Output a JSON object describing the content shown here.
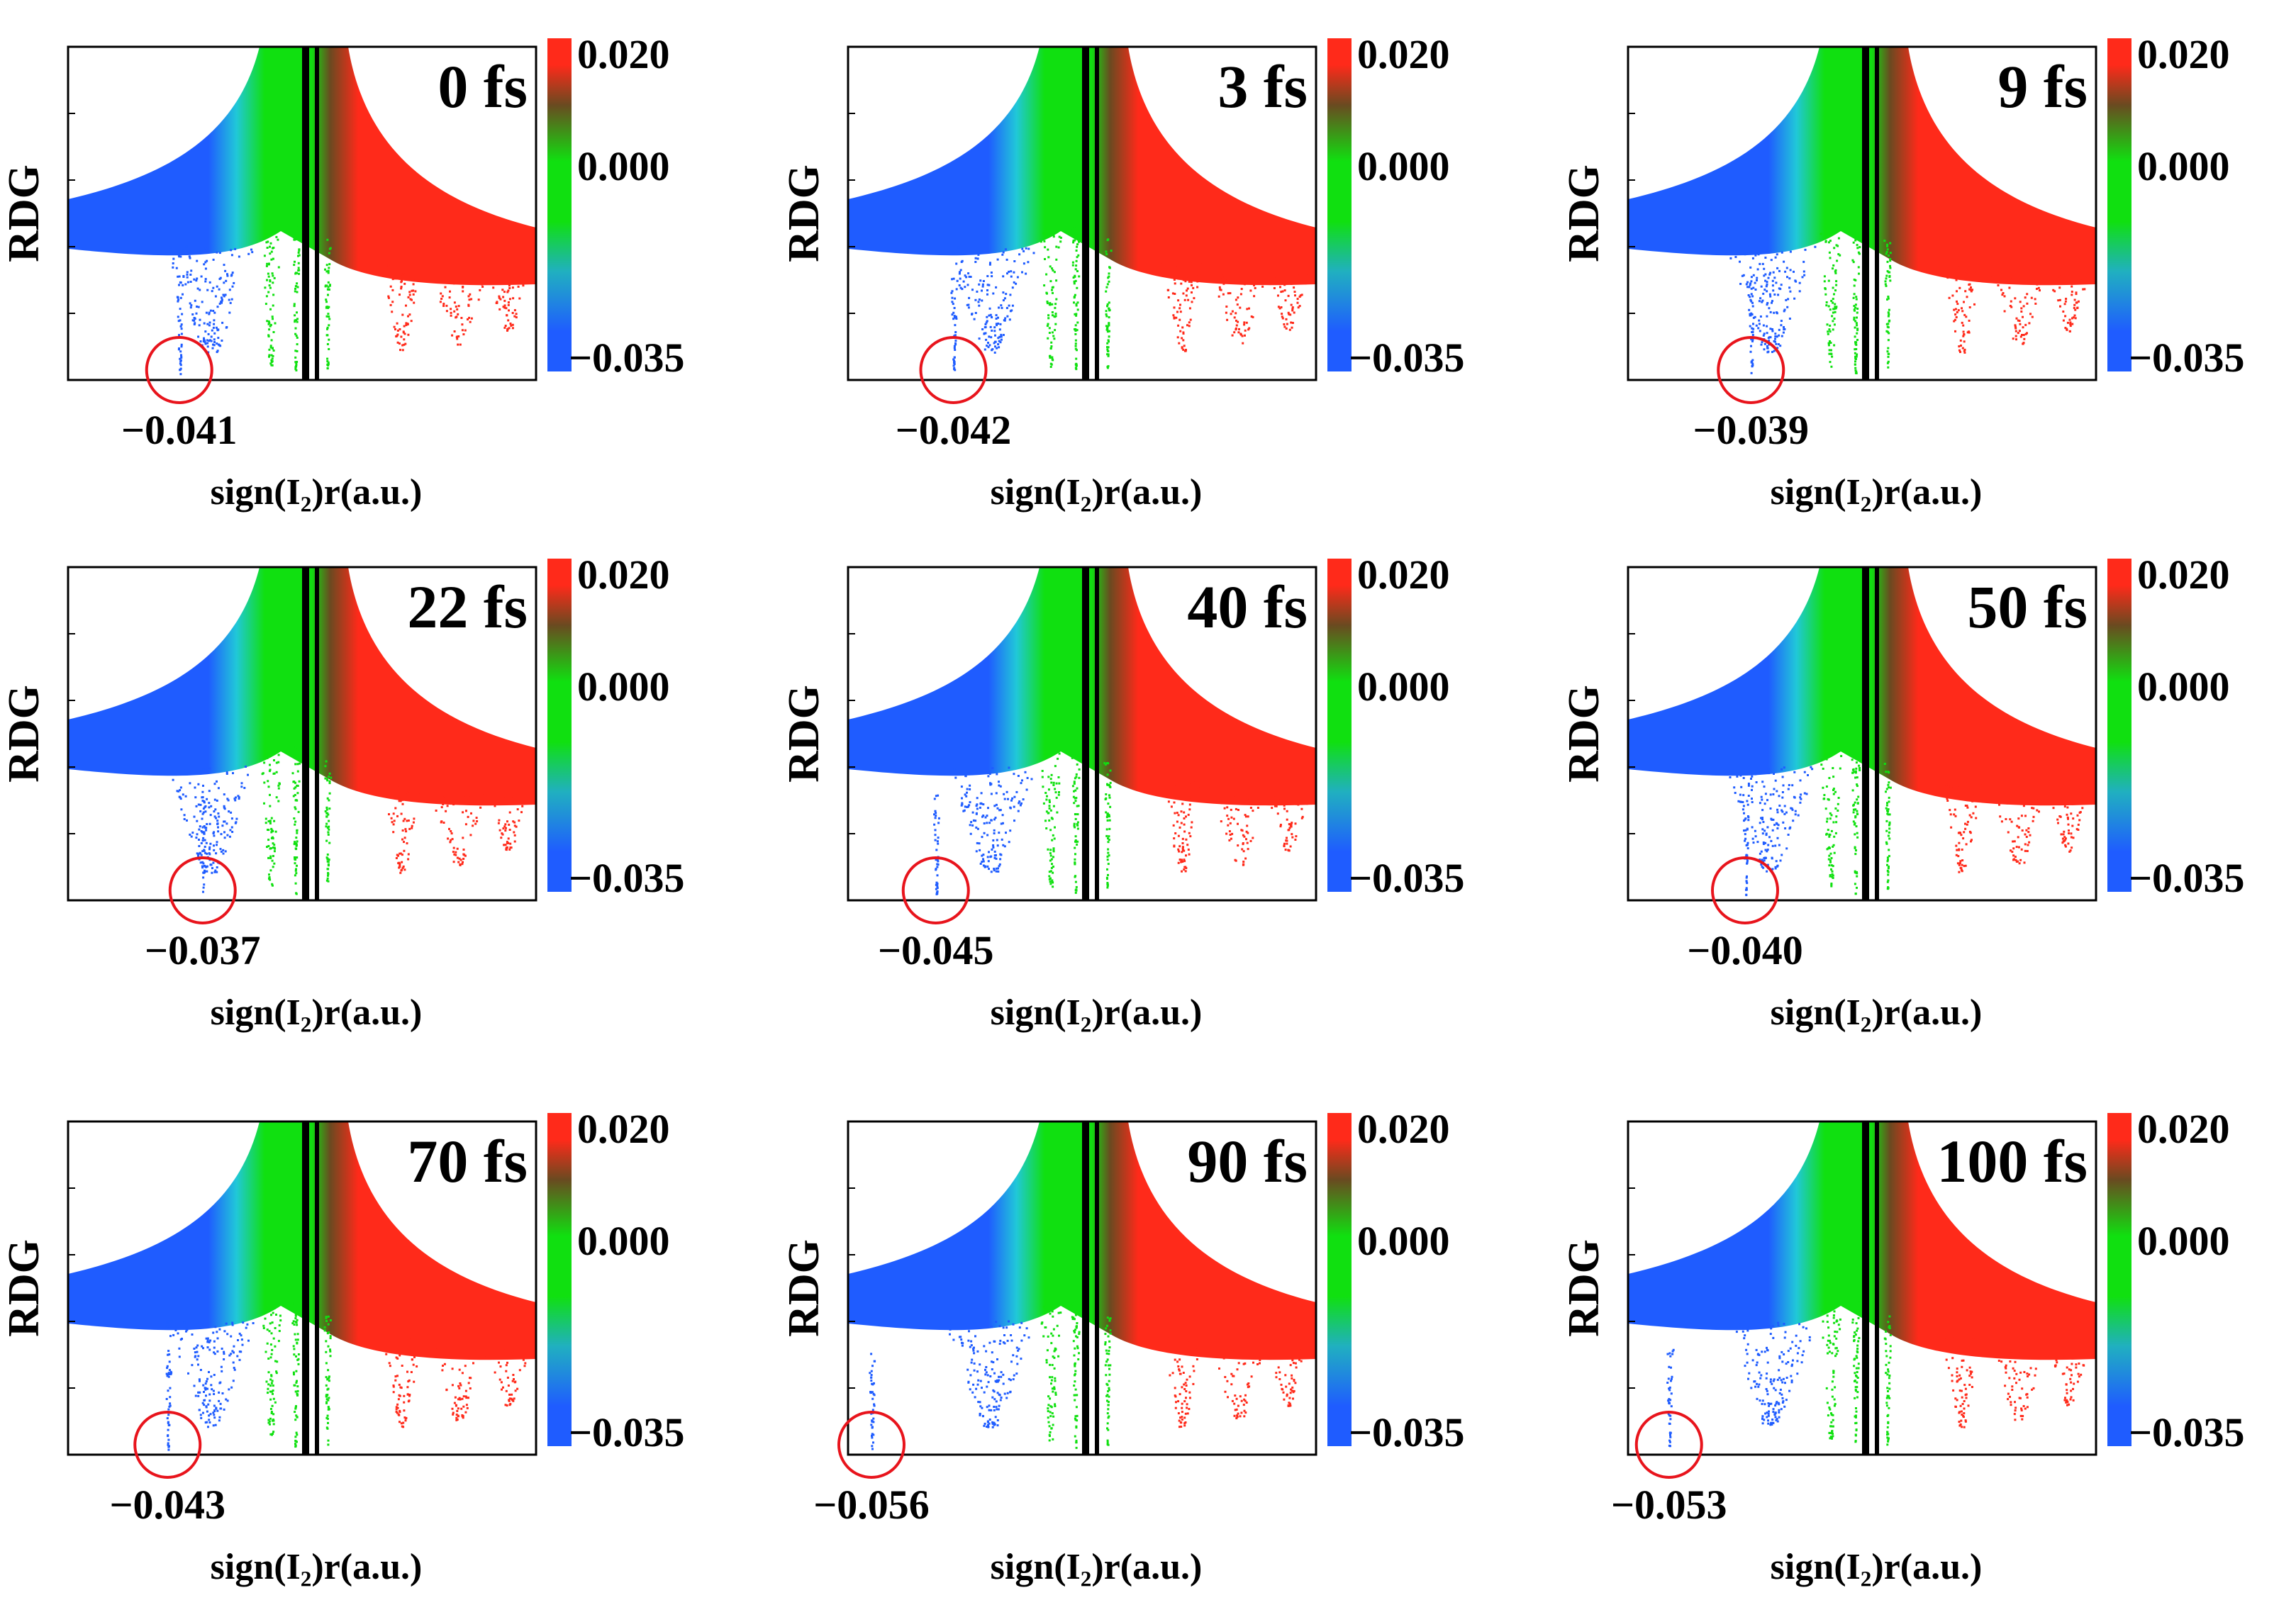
{
  "figure": {
    "description_free": true,
    "colorbar": {
      "ticks": [
        "0.020",
        "0.000",
        "−0.035"
      ],
      "range": [
        -0.035,
        0.02
      ],
      "colors": {
        "negative": "#1f5cff",
        "mid": "#10e010",
        "positive": "#ff2a1a",
        "dark_mid": "#6a4a20"
      }
    },
    "marker_color": "#e8141c",
    "point_colors": {
      "blue": "#1f5cff",
      "green": "#10e010",
      "red": "#ff2a1a"
    }
  },
  "chart_data": [
    {
      "type": "scatter",
      "time_label": "0 fs",
      "xlabel": "sign(I₂)r(a.u.)",
      "ylabel": "RDG",
      "min_label": "−0.041",
      "min_value": -0.041,
      "colorbar_ticks": [
        "0.020",
        "0.000",
        "−0.035"
      ],
      "colorbar_range": [
        -0.035,
        0.02
      ]
    },
    {
      "type": "scatter",
      "time_label": "3 fs",
      "xlabel": "sign(I₂)r(a.u.)",
      "ylabel": "RDG",
      "min_label": "−0.042",
      "min_value": -0.042,
      "colorbar_ticks": [
        "0.020",
        "0.000",
        "−0.035"
      ],
      "colorbar_range": [
        -0.035,
        0.02
      ]
    },
    {
      "type": "scatter",
      "time_label": "9 fs",
      "xlabel": "sign(I₂)r(a.u.)",
      "ylabel": "RDG",
      "min_label": "−0.039",
      "min_value": -0.039,
      "colorbar_ticks": [
        "0.020",
        "0.000",
        "−0.035"
      ],
      "colorbar_range": [
        -0.035,
        0.02
      ]
    },
    {
      "type": "scatter",
      "time_label": "22 fs",
      "xlabel": "sign(I₂)r(a.u.)",
      "ylabel": "RDG",
      "min_label": "−0.037",
      "min_value": -0.037,
      "colorbar_ticks": [
        "0.020",
        "0.000",
        "−0.035"
      ],
      "colorbar_range": [
        -0.035,
        0.02
      ]
    },
    {
      "type": "scatter",
      "time_label": "40 fs",
      "xlabel": "sign(I₂)r(a.u.)",
      "ylabel": "RDG",
      "min_label": "−0.045",
      "min_value": -0.045,
      "colorbar_ticks": [
        "0.020",
        "0.000",
        "−0.035"
      ],
      "colorbar_range": [
        -0.035,
        0.02
      ]
    },
    {
      "type": "scatter",
      "time_label": "50 fs",
      "xlabel": "sign(I₂)r(a.u.)",
      "ylabel": "RDG",
      "min_label": "−0.040",
      "min_value": -0.04,
      "colorbar_ticks": [
        "0.020",
        "0.000",
        "−0.035"
      ],
      "colorbar_range": [
        -0.035,
        0.02
      ]
    },
    {
      "type": "scatter",
      "time_label": "70 fs",
      "xlabel": "sign(I₂)r(a.u.)",
      "ylabel": "RDG",
      "min_label": "−0.043",
      "min_value": -0.043,
      "colorbar_ticks": [
        "0.020",
        "0.000",
        "−0.035"
      ],
      "colorbar_range": [
        -0.035,
        0.02
      ]
    },
    {
      "type": "scatter",
      "time_label": "90 fs",
      "xlabel": "sign(I₂)r(a.u.)",
      "ylabel": "RDG",
      "min_label": "−0.056",
      "min_value": -0.056,
      "colorbar_ticks": [
        "0.020",
        "0.000",
        "−0.035"
      ],
      "colorbar_range": [
        -0.035,
        0.02
      ]
    },
    {
      "type": "scatter",
      "time_label": "100 fs",
      "xlabel": "sign(I₂)r(a.u.)",
      "ylabel": "RDG",
      "min_label": "−0.053",
      "min_value": -0.053,
      "colorbar_ticks": [
        "0.020",
        "0.000",
        "−0.035"
      ],
      "colorbar_range": [
        -0.035,
        0.02
      ]
    }
  ]
}
